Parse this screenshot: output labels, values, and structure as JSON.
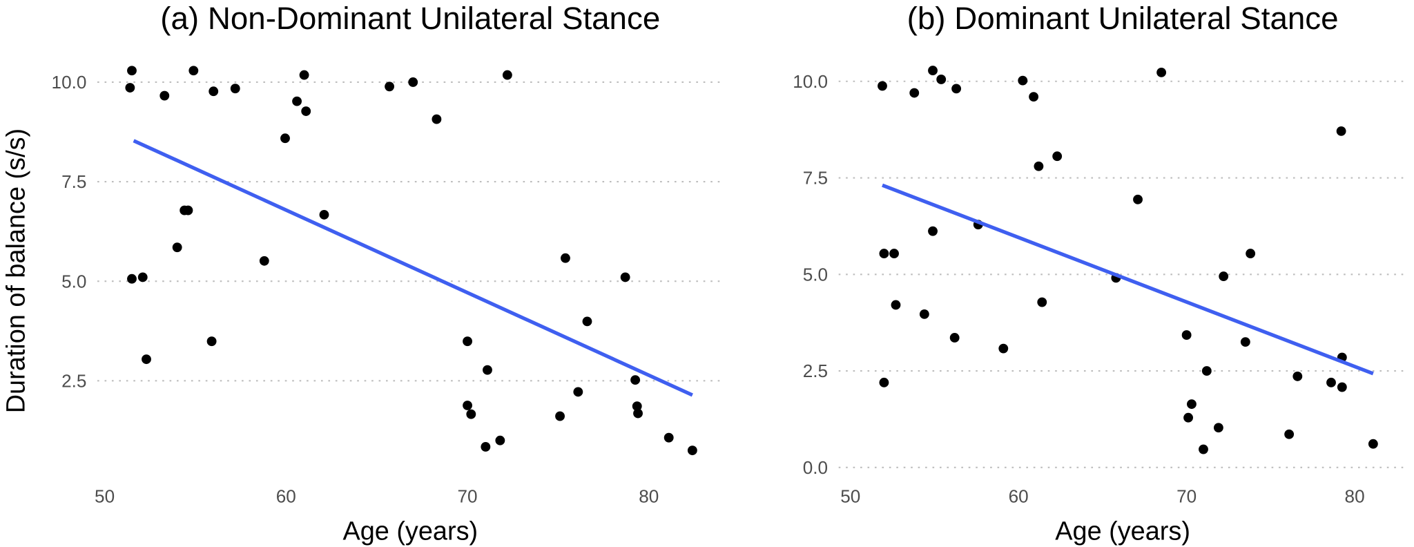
{
  "ylabel": "Duration of balance (s/s)",
  "colors": {
    "points": "#000000",
    "fit_line": "#3f5ff0",
    "grid": "#bdbdbd"
  },
  "chart_data": [
    {
      "type": "scatter",
      "title": "(a) Non-Dominant Unilateral Stance",
      "xlabel": "Age (years)",
      "ylabel": "Duration of balance (s/s)",
      "xlim": [
        49.6,
        84.0
      ],
      "ylim": [
        0.05,
        10.7
      ],
      "xticks": [
        50,
        60,
        70,
        80
      ],
      "xtick_labels": [
        "50",
        "60",
        "70",
        "80"
      ],
      "yticks": [
        2.5,
        5.0,
        7.5,
        10.0
      ],
      "ytick_labels": [
        "2.5",
        "5.0",
        "7.5",
        "10.0"
      ],
      "grid": "horizontal dotted",
      "points": [
        [
          51.4,
          9.86
        ],
        [
          51.5,
          10.29
        ],
        [
          51.5,
          5.06
        ],
        [
          52.1,
          5.1
        ],
        [
          52.3,
          3.04
        ],
        [
          53.3,
          9.66
        ],
        [
          54.0,
          5.85
        ],
        [
          54.4,
          6.78
        ],
        [
          54.6,
          6.78
        ],
        [
          54.9,
          10.29
        ],
        [
          55.9,
          3.49
        ],
        [
          56.0,
          9.77
        ],
        [
          57.2,
          9.84
        ],
        [
          58.8,
          5.51
        ],
        [
          59.95,
          8.59
        ],
        [
          60.6,
          9.52
        ],
        [
          61.0,
          10.18
        ],
        [
          61.1,
          9.27
        ],
        [
          62.1,
          6.67
        ],
        [
          65.7,
          9.89
        ],
        [
          67.0,
          10.0
        ],
        [
          68.3,
          9.07
        ],
        [
          70.0,
          3.49
        ],
        [
          70.0,
          1.88
        ],
        [
          70.2,
          1.66
        ],
        [
          71.0,
          0.84
        ],
        [
          71.1,
          2.77
        ],
        [
          71.8,
          1.0
        ],
        [
          72.2,
          10.18
        ],
        [
          75.1,
          1.61
        ],
        [
          75.4,
          5.58
        ],
        [
          76.1,
          2.22
        ],
        [
          76.6,
          3.99
        ],
        [
          78.7,
          5.1
        ],
        [
          79.25,
          2.52
        ],
        [
          79.35,
          1.86
        ],
        [
          79.4,
          1.68
        ],
        [
          81.1,
          1.07
        ],
        [
          82.4,
          0.75
        ]
      ],
      "fit_line": [
        [
          51.6,
          8.53
        ],
        [
          82.4,
          2.14
        ]
      ]
    },
    {
      "type": "scatter",
      "title": "(b) Dominant Unilateral Stance",
      "xlabel": "Age (years)",
      "xlim": [
        49.3,
        83.1
      ],
      "ylim": [
        -0.28,
        10.7
      ],
      "xticks": [
        50,
        60,
        70,
        80
      ],
      "xtick_labels": [
        "50",
        "60",
        "70",
        "80"
      ],
      "yticks": [
        0.0,
        2.5,
        5.0,
        7.5,
        10.0
      ],
      "ytick_labels": [
        "0.0",
        "2.5",
        "5.0",
        "7.5",
        "10.0"
      ],
      "grid": "horizontal dotted",
      "points": [
        [
          51.9,
          9.88
        ],
        [
          52.0,
          5.54
        ],
        [
          52.0,
          2.2
        ],
        [
          52.6,
          5.54
        ],
        [
          52.7,
          4.21
        ],
        [
          53.8,
          9.7
        ],
        [
          54.4,
          3.97
        ],
        [
          54.9,
          10.28
        ],
        [
          54.9,
          6.12
        ],
        [
          55.4,
          10.05
        ],
        [
          56.2,
          3.36
        ],
        [
          56.3,
          9.81
        ],
        [
          57.6,
          6.29
        ],
        [
          59.1,
          3.08
        ],
        [
          60.25,
          10.02
        ],
        [
          60.9,
          9.6
        ],
        [
          61.2,
          7.8
        ],
        [
          61.4,
          4.28
        ],
        [
          62.3,
          8.06
        ],
        [
          65.8,
          4.91
        ],
        [
          67.1,
          6.94
        ],
        [
          68.5,
          10.23
        ],
        [
          70.0,
          3.43
        ],
        [
          70.1,
          1.29
        ],
        [
          70.3,
          1.64
        ],
        [
          71.0,
          0.47
        ],
        [
          71.2,
          2.5
        ],
        [
          71.9,
          1.03
        ],
        [
          72.2,
          4.95
        ],
        [
          73.5,
          3.25
        ],
        [
          73.8,
          5.54
        ],
        [
          76.1,
          0.86
        ],
        [
          76.6,
          2.36
        ],
        [
          78.6,
          2.2
        ],
        [
          79.2,
          8.71
        ],
        [
          79.25,
          2.85
        ],
        [
          79.25,
          2.08
        ],
        [
          81.1,
          0.61
        ]
      ],
      "fit_line": [
        [
          51.9,
          7.31
        ],
        [
          81.1,
          2.43
        ]
      ]
    }
  ]
}
